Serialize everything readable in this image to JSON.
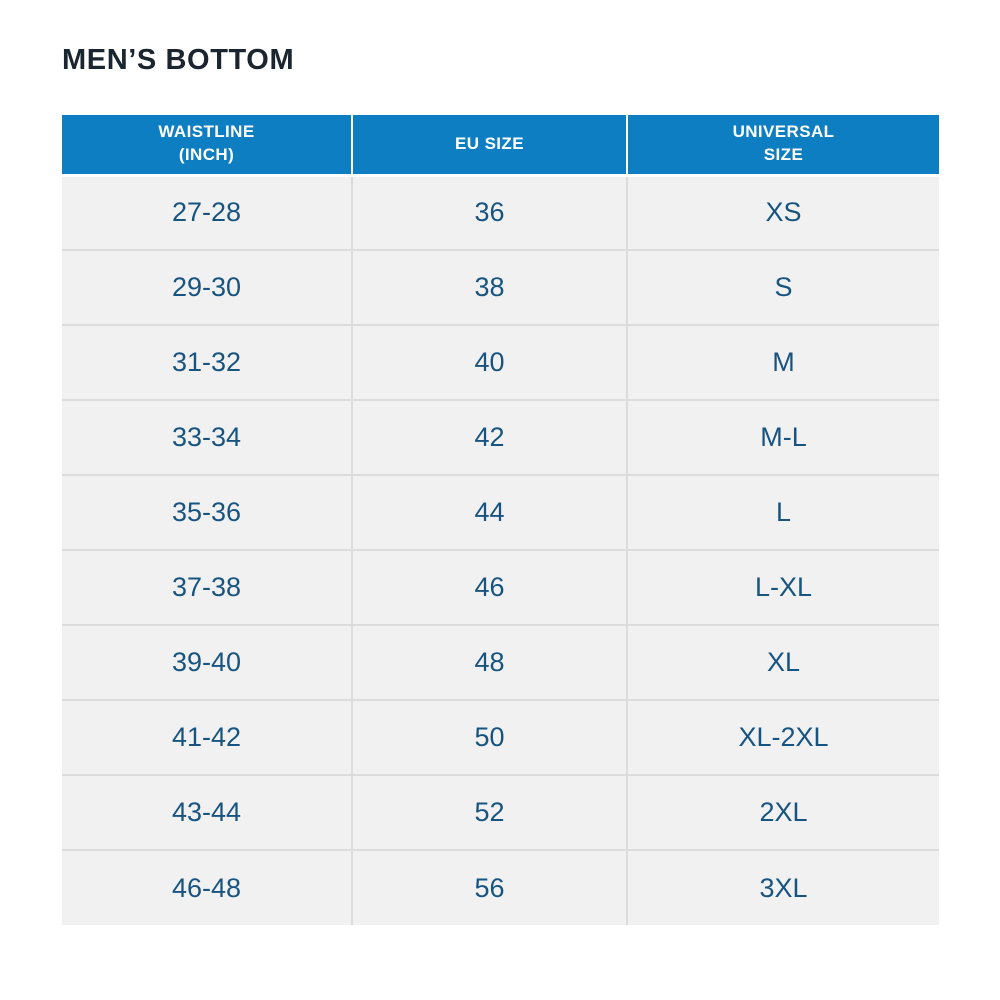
{
  "title": "MEN’S BOTTOM",
  "colors": {
    "page_bg": "#ffffff",
    "header_bg": "#0d7ec1",
    "header_text": "#ffffff",
    "title_text": "#1a2530",
    "cell_text": "#175480",
    "row_bg": "#f1f1f2",
    "divider": "#dcdcdc"
  },
  "table": {
    "columns": [
      {
        "id": "waistline",
        "label": "WAISTLINE\n(INCH)"
      },
      {
        "id": "eu-size",
        "label": "EU SIZE"
      },
      {
        "id": "universal-size",
        "label": "UNIVERSAL\nSIZE"
      }
    ],
    "rows": [
      [
        "27-28",
        "36",
        "XS"
      ],
      [
        "29-30",
        "38",
        "S"
      ],
      [
        "31-32",
        "40",
        "M"
      ],
      [
        "33-34",
        "42",
        "M-L"
      ],
      [
        "35-36",
        "44",
        "L"
      ],
      [
        "37-38",
        "46",
        "L-XL"
      ],
      [
        "39-40",
        "48",
        "XL"
      ],
      [
        "41-42",
        "50",
        "XL-2XL"
      ],
      [
        "43-44",
        "52",
        "2XL"
      ],
      [
        "46-48",
        "56",
        "3XL"
      ]
    ]
  },
  "chart_data": {
    "type": "table",
    "title": "MEN’S BOTTOM",
    "columns": [
      "WAISTLINE (INCH)",
      "EU SIZE",
      "UNIVERSAL SIZE"
    ],
    "rows": [
      [
        "27-28",
        "36",
        "XS"
      ],
      [
        "29-30",
        "38",
        "S"
      ],
      [
        "31-32",
        "40",
        "M"
      ],
      [
        "33-34",
        "42",
        "M-L"
      ],
      [
        "35-36",
        "44",
        "L"
      ],
      [
        "37-38",
        "46",
        "L-XL"
      ],
      [
        "39-40",
        "48",
        "XL"
      ],
      [
        "41-42",
        "50",
        "XL-2XL"
      ],
      [
        "43-44",
        "52",
        "2XL"
      ],
      [
        "46-48",
        "56",
        "3XL"
      ]
    ],
    "legend_position": "none",
    "grid": "row-and-column-dividers"
  }
}
